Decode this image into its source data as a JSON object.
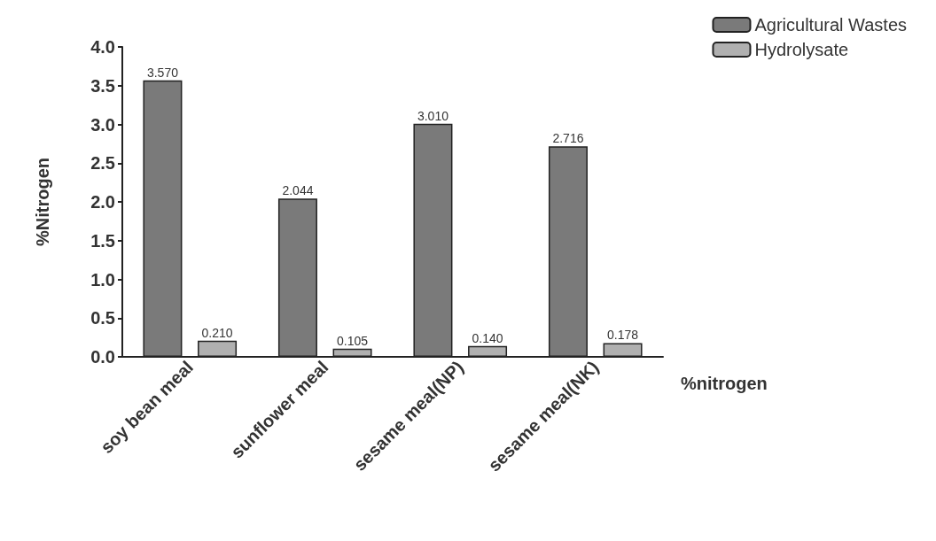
{
  "chart_data": {
    "type": "bar",
    "ylabel": "%Nitrogen",
    "xlabel": "%nitrogen",
    "categories": [
      "soy bean meal",
      "sunflower meal",
      "sesame meal(NP)",
      "sesame meal(NK)"
    ],
    "series": [
      {
        "name": "Agricultural Wastes",
        "color": "#7a7a7a",
        "values": [
          3.57,
          2.044,
          3.01,
          2.716
        ],
        "value_labels": [
          "3.570",
          "2.044",
          "3.010",
          "2.716"
        ]
      },
      {
        "name": "Hydrolysate",
        "color": "#b0b0b0",
        "values": [
          0.21,
          0.105,
          0.14,
          0.178
        ],
        "value_labels": [
          "0.210",
          "0.105",
          "0.140",
          "0.178"
        ]
      }
    ],
    "ylim": [
      0,
      4
    ],
    "yticks": [
      {
        "value": 0,
        "label": "0.0"
      },
      {
        "value": 0.5,
        "label": "0.5"
      },
      {
        "value": 1,
        "label": "1.0"
      },
      {
        "value": 1.5,
        "label": "1.5"
      },
      {
        "value": 2,
        "label": "2.0"
      },
      {
        "value": 2.5,
        "label": "2.5"
      },
      {
        "value": 3,
        "label": "3.0"
      },
      {
        "value": 3.5,
        "label": "3.5"
      },
      {
        "value": 4,
        "label": "4.0"
      }
    ],
    "grid": false,
    "legend": "top right"
  }
}
